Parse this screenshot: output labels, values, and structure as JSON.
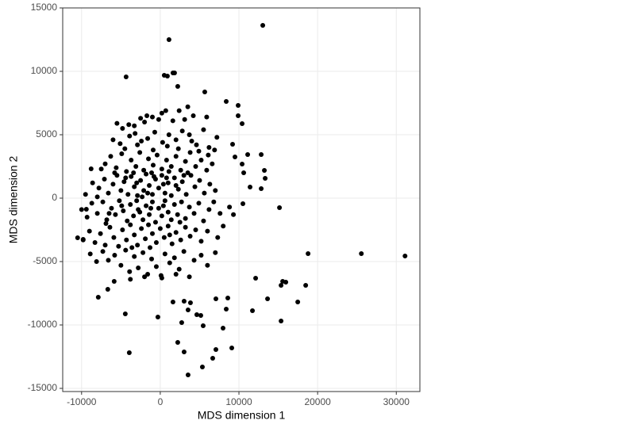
{
  "chart_data": {
    "type": "scatter",
    "xlabel": "MDS dimension 1",
    "ylabel": "MDS dimension 2",
    "xlim": [
      -12400,
      33000
    ],
    "ylim": [
      -15250,
      15000
    ],
    "xticks": [
      -10000,
      0,
      10000,
      20000,
      30000
    ],
    "yticks": [
      -15000,
      -10000,
      -5000,
      0,
      5000,
      10000,
      15000
    ],
    "grid": true,
    "color": "#000000",
    "x": [
      13030,
      1111,
      -4343,
      505,
      909,
      1616,
      1818,
      2222,
      5657,
      8384,
      9899,
      10404,
      15152,
      18788,
      25556,
      31111,
      12121,
      15556,
      15960,
      15354,
      18485,
      13636,
      17475,
      15354,
      11717,
      -4444,
      -303,
      -3939,
      1616,
      3030,
      3838,
      3535,
      4646,
      5152,
      2727,
      5454,
      7980,
      2222,
      3030,
      7071,
      9091,
      6667,
      5354,
      3535,
      7071,
      8586,
      8384,
      -7879,
      -6667,
      -5859,
      -9798,
      -10505,
      -8788,
      -9394,
      11414,
      13232,
      13333,
      12828,
      11111,
      12828,
      10606,
      10404,
      9495,
      9192,
      9899,
      10505,
      -4000,
      -3300,
      -2500,
      -1700,
      -1000,
      -200,
      700,
      1600,
      2400,
      3500,
      4200,
      5900,
      -5500,
      -4800,
      -2000,
      200,
      3100,
      -6000,
      -5100,
      -3900,
      -3200,
      -2400,
      -1600,
      -700,
      300,
      1100,
      2000,
      2800,
      3700,
      4600,
      5500,
      6200,
      7200,
      -4500,
      -2900,
      -900,
      900,
      2300,
      4000,
      6900,
      -7000,
      -6300,
      -5600,
      -4900,
      -4300,
      -3700,
      -3100,
      -2600,
      -2100,
      -1500,
      -900,
      -400,
      200,
      800,
      1400,
      2000,
      2600,
      3200,
      3800,
      4500,
      5200,
      5900,
      6600,
      -5800,
      -3400,
      -1100,
      1100,
      3500,
      -7500,
      4900,
      6100,
      -8600,
      -7800,
      -7100,
      -6600,
      -6000,
      -5500,
      -5000,
      -4600,
      -4100,
      -3700,
      -3300,
      -2900,
      -2500,
      -2100,
      -1800,
      -1400,
      -1000,
      -600,
      -200,
      200,
      600,
      1000,
      1400,
      1800,
      2300,
      2800,
      3300,
      3900,
      4400,
      5000,
      5600,
      6300,
      7000,
      -3000,
      -1600,
      -800,
      400,
      2000,
      -4400,
      -2300,
      800,
      3000,
      -9500,
      -8000,
      -10000,
      -9300,
      -8700,
      -8000,
      -7300,
      -6800,
      -6200,
      -5700,
      -5200,
      -4700,
      -4200,
      -3800,
      -3400,
      -3000,
      -2600,
      -2200,
      -1800,
      -1400,
      -1000,
      -600,
      -200,
      200,
      600,
      1000,
      1400,
      1800,
      2200,
      2700,
      3200,
      3700,
      4300,
      4900,
      5500,
      6200,
      6800,
      7600,
      8800,
      9300,
      -2800,
      -1200,
      400,
      -4900,
      2500,
      -6500,
      -9800,
      -9000,
      -8300,
      -7600,
      -7000,
      -6400,
      -5900,
      -5300,
      -4800,
      -4300,
      -3800,
      -3300,
      -2900,
      -2400,
      -1900,
      -1500,
      -1000,
      -500,
      0,
      500,
      1000,
      1500,
      2000,
      2600,
      3200,
      3800,
      4500,
      5200,
      6000,
      7300,
      8000,
      -3600,
      -1300,
      1200,
      -6900,
      -8900,
      -8100,
      -7300,
      -6600,
      -5800,
      -5000,
      -4400,
      -3900,
      -3300,
      -2800,
      -2200,
      -1600,
      -1100,
      -500,
      100,
      600,
      1200,
      1800,
      2400,
      3000,
      3700,
      4300,
      5200,
      6000,
      7000,
      -2000,
      -3800,
      200,
      2000
    ],
    "values": [
      13625,
      12500,
      9563,
      9690,
      9625,
      9875,
      9875,
      8810,
      8375,
      7625,
      7310,
      5875,
      -750,
      -4375,
      -4375,
      -4563,
      -6313,
      -6563,
      -6625,
      -6875,
      -6875,
      -7938,
      -8188,
      -9688,
      -8875,
      -9125,
      -9375,
      -12188,
      -8188,
      -8125,
      -8250,
      -8813,
      -9188,
      -9250,
      -9813,
      -10063,
      -10250,
      -11375,
      -12125,
      -11938,
      -11813,
      -12625,
      -13313,
      -13938,
      -7938,
      -7875,
      -8750,
      -7813,
      -7188,
      -6563,
      -3250,
      -3125,
      2313,
      -875,
      875,
      2188,
      1563,
      3438,
      3438,
      750,
      2000,
      2688,
      3250,
      4250,
      6500,
      -438,
      5800,
      5700,
      6300,
      6500,
      6400,
      6200,
      6900,
      6100,
      6900,
      7200,
      6500,
      6400,
      5900,
      5500,
      6000,
      6700,
      6200,
      4600,
      4300,
      4900,
      5100,
      4500,
      4700,
      5200,
      4400,
      5000,
      4600,
      5300,
      5000,
      4200,
      5400,
      4000,
      4800,
      3900,
      4200,
      3800,
      4100,
      3900,
      4500,
      3800,
      2700,
      3300,
      2400,
      3500,
      2100,
      3000,
      2500,
      3600,
      2200,
      3100,
      2600,
      3400,
      2300,
      3000,
      2500,
      3300,
      2200,
      2900,
      3600,
      2500,
      3000,
      2200,
      2700,
      2000,
      2000,
      2000,
      2100,
      2000,
      2300,
      3700,
      3400,
      1200,
      800,
      1500,
      400,
      1100,
      1800,
      600,
      1300,
      300,
      1700,
      900,
      200,
      1400,
      600,
      1900,
      1000,
      300,
      1500,
      800,
      1800,
      400,
      1200,
      200,
      1600,
      700,
      1300,
      300,
      1800,
      900,
      1400,
      400,
      1100,
      600,
      1200,
      400,
      1700,
      1100,
      1000,
      1600,
      100,
      1600,
      1800,
      300,
      100,
      -900,
      -1500,
      -400,
      -1200,
      -300,
      -1700,
      -800,
      -1300,
      -200,
      -1000,
      -1800,
      -500,
      -1400,
      -200,
      -1100,
      -1700,
      -600,
      -1300,
      -300,
      -1900,
      -800,
      -1400,
      -200,
      -1100,
      -1700,
      -500,
      -1300,
      -300,
      -1600,
      -700,
      -1200,
      -400,
      -1800,
      -900,
      -300,
      -1200,
      -700,
      -1300,
      -900,
      -800,
      -600,
      -600,
      -1900,
      -1200,
      -3300,
      -2600,
      -3500,
      -2800,
      -3700,
      -2300,
      -3100,
      -3800,
      -2500,
      -3300,
      -2100,
      -2900,
      -3700,
      -2400,
      -3200,
      -2100,
      -2800,
      -3500,
      -2400,
      -3100,
      -2200,
      -3600,
      -2700,
      -3300,
      -2300,
      -3000,
      -2500,
      -3400,
      -2600,
      -3100,
      -2200,
      -3900,
      -3900,
      -2900,
      -2000,
      -4400,
      -5000,
      -4200,
      -4900,
      -4500,
      -5300,
      -4100,
      -5800,
      -4600,
      -5500,
      -4300,
      -6000,
      -4800,
      -5400,
      -6100,
      -4400,
      -5100,
      -4700,
      -5600,
      -4200,
      -6200,
      -4900,
      -4500,
      -5300,
      -4300,
      -6200,
      -6400,
      -6300,
      -6000
    ]
  }
}
